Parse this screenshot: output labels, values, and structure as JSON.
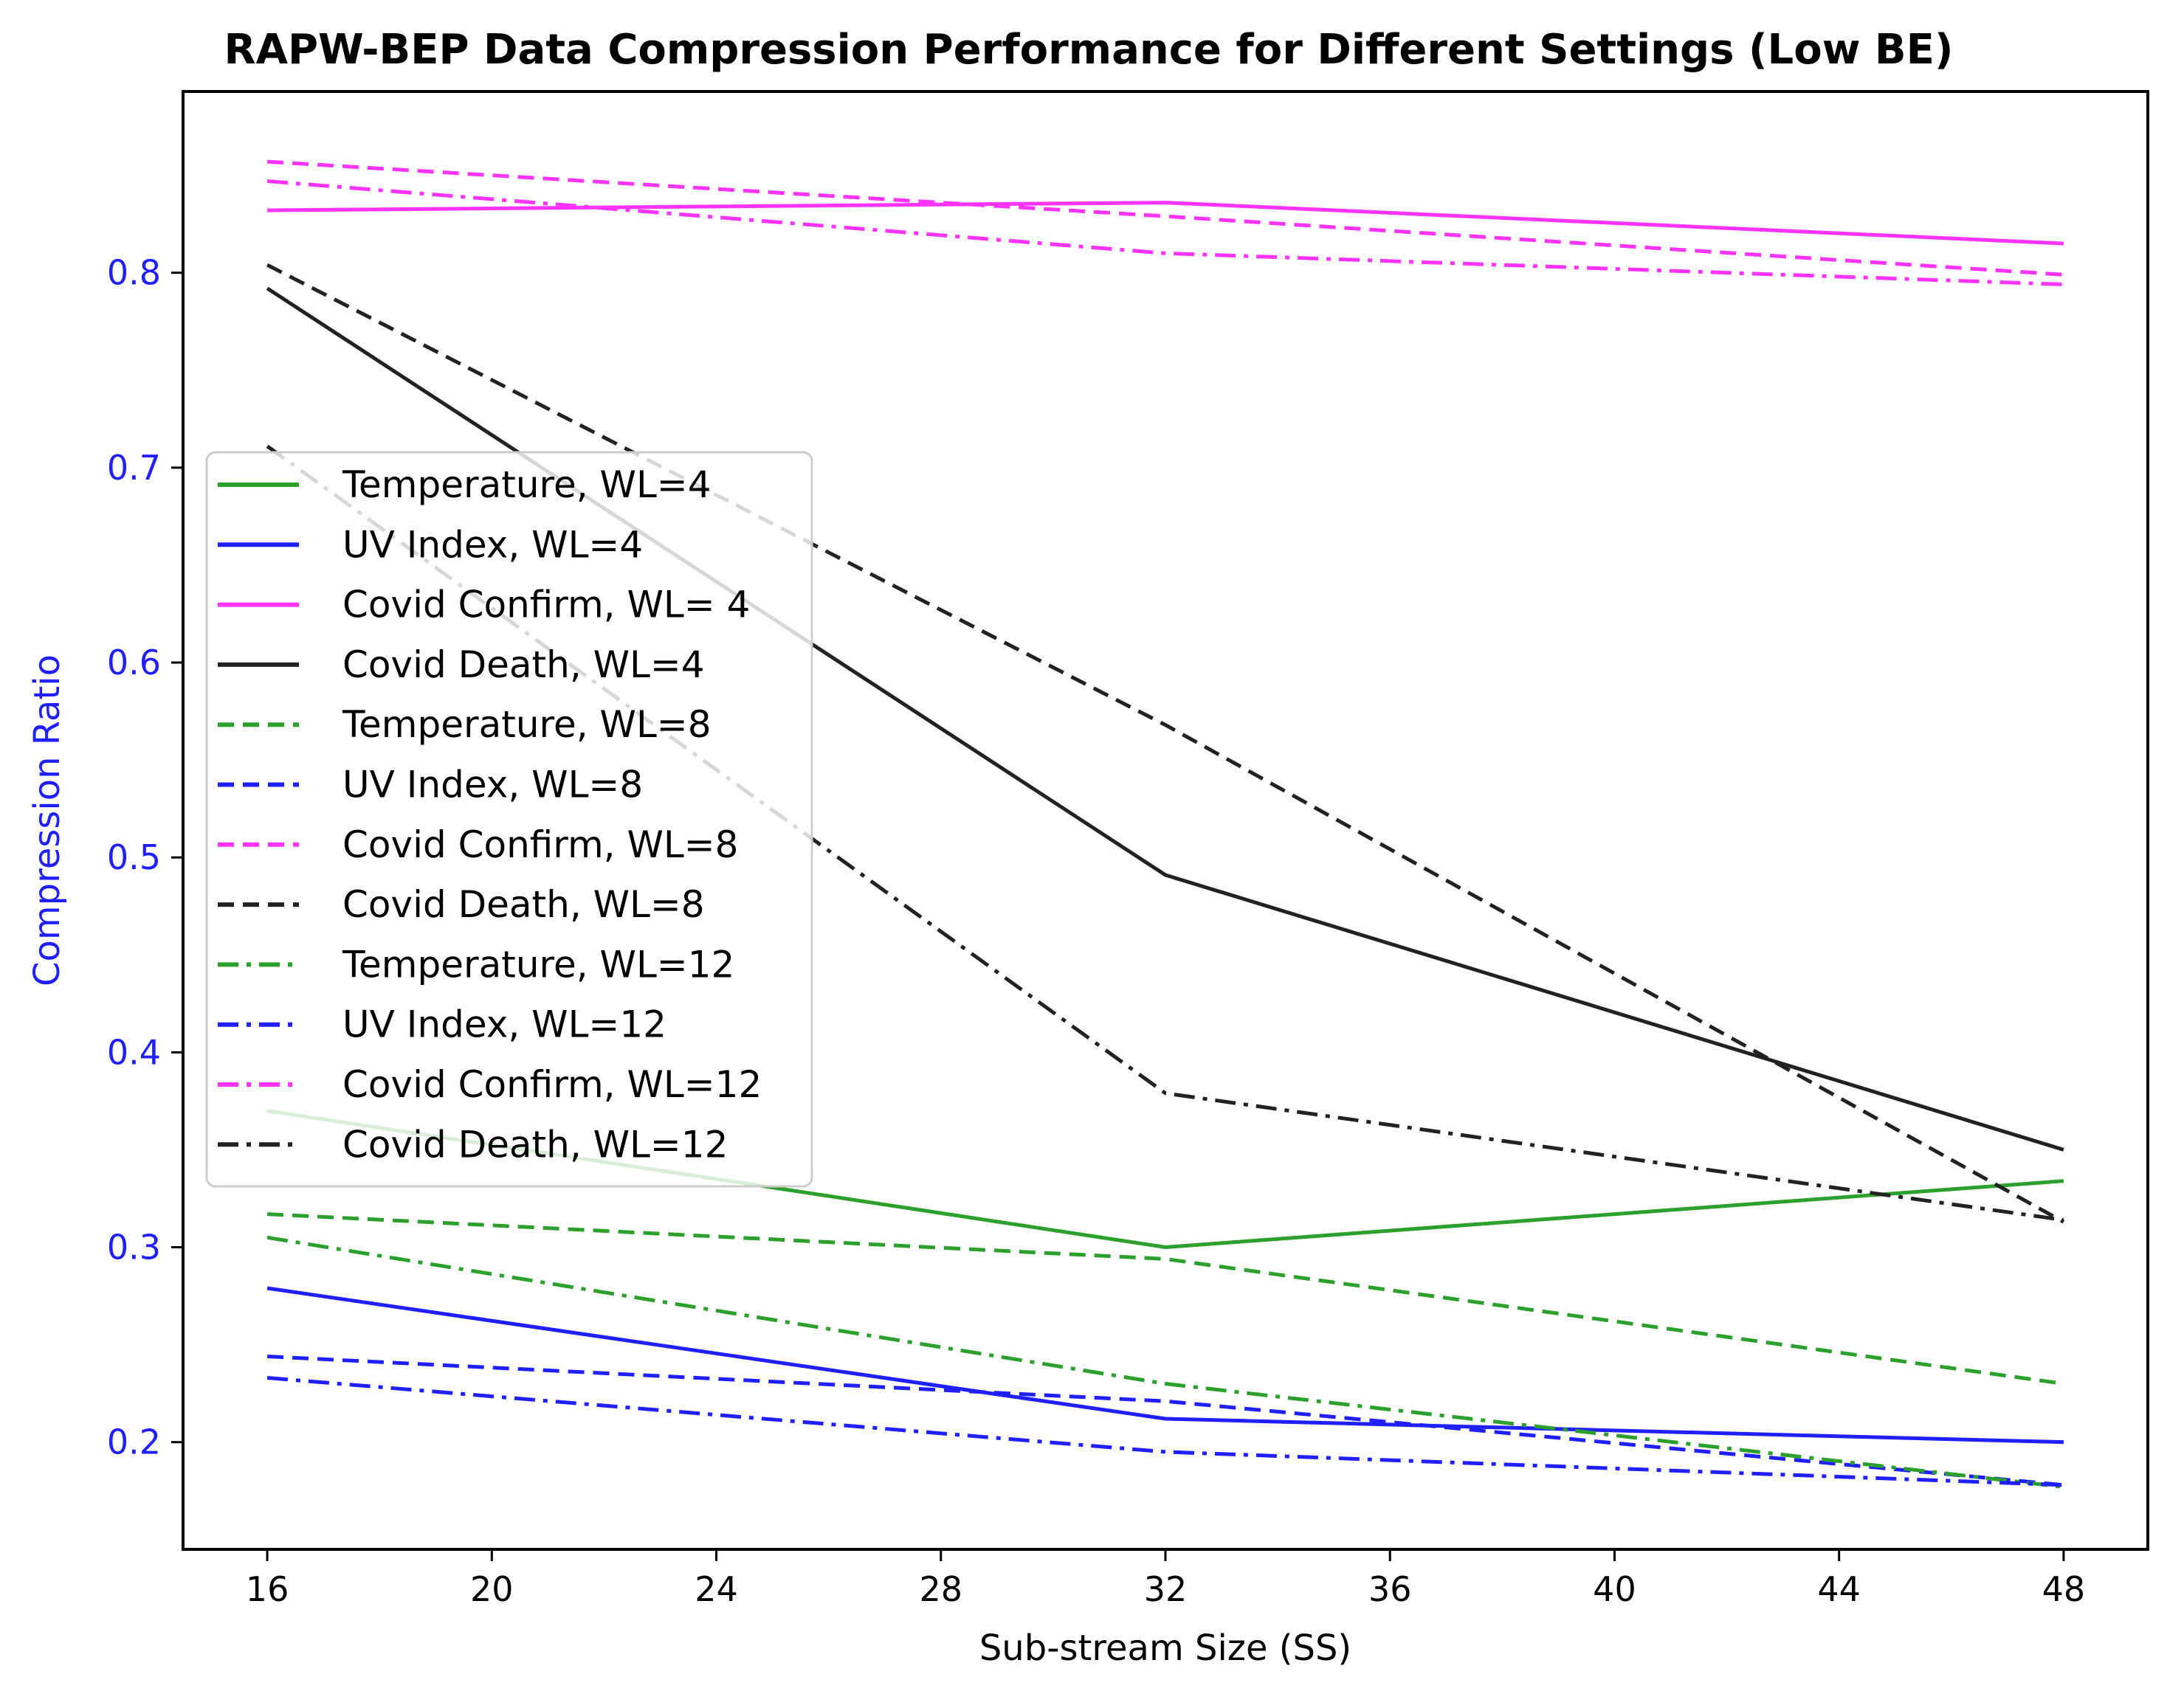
{
  "chart_data": {
    "type": "line",
    "title": "RAPW-BEP Data Compression Performance for Different Settings (Low BE)",
    "xlabel": "Sub-stream Size (SS)",
    "ylabel": "Compression Ratio",
    "xlim": [
      14.5,
      49.5
    ],
    "ylim": [
      0.145,
      0.893
    ],
    "xticks": [
      16,
      20,
      24,
      28,
      32,
      36,
      40,
      44,
      48
    ],
    "yticks": [
      0.2,
      0.3,
      0.4,
      0.5,
      0.6,
      0.7,
      0.8
    ],
    "x": [
      16,
      32,
      48
    ],
    "grid": false,
    "legend_position": "center-left",
    "series": [
      {
        "name": "Temperature, WL=4",
        "color": "#2ca02c",
        "style": "solid",
        "values": [
          0.37,
          0.3,
          0.334
        ]
      },
      {
        "name": "UV Index, WL=4",
        "color": "#1f1fff",
        "style": "solid",
        "values": [
          0.279,
          0.212,
          0.2
        ]
      },
      {
        "name": "Covid Confirm, WL= 4",
        "color": "#ff33ff",
        "style": "solid",
        "values": [
          0.832,
          0.836,
          0.815
        ]
      },
      {
        "name": "Covid Death, WL=4",
        "color": "#222222",
        "style": "solid",
        "values": [
          0.792,
          0.491,
          0.35
        ]
      },
      {
        "name": "Temperature, WL=8",
        "color": "#2ca02c",
        "style": "dashed",
        "values": [
          0.317,
          0.294,
          0.23
        ]
      },
      {
        "name": "UV Index, WL=8",
        "color": "#1f1fff",
        "style": "dashed",
        "values": [
          0.244,
          0.221,
          0.178
        ]
      },
      {
        "name": "Covid Confirm, WL=8",
        "color": "#ff33ff",
        "style": "dashed",
        "values": [
          0.857,
          0.829,
          0.799
        ]
      },
      {
        "name": "Covid Death, WL=8",
        "color": "#222222",
        "style": "dashed",
        "values": [
          0.804,
          0.568,
          0.313
        ]
      },
      {
        "name": "Temperature, WL=12",
        "color": "#2ca02c",
        "style": "dashdot",
        "values": [
          0.305,
          0.23,
          0.177
        ]
      },
      {
        "name": "UV Index, WL=12",
        "color": "#1f1fff",
        "style": "dashdot",
        "values": [
          0.233,
          0.195,
          0.178
        ]
      },
      {
        "name": "Covid Confirm, WL=12",
        "color": "#ff33ff",
        "style": "dashdot",
        "values": [
          0.847,
          0.81,
          0.794
        ]
      },
      {
        "name": "Covid Death, WL=12",
        "color": "#222222",
        "style": "dashdot",
        "values": [
          0.711,
          0.379,
          0.314
        ]
      }
    ]
  }
}
